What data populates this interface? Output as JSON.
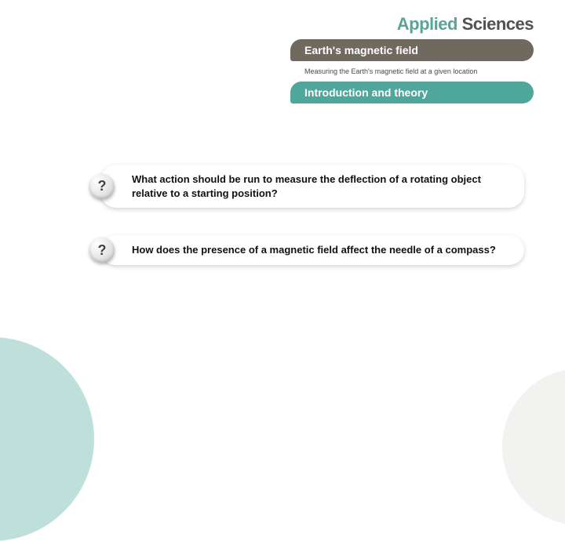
{
  "brand": {
    "word1": "Applied",
    "word2": "Sciences"
  },
  "topic": {
    "title": "Earth's magnetic field",
    "subtitle": "Measuring the Earth's magnetic field at a given location"
  },
  "section": {
    "title": "Introduction and theory"
  },
  "questions": [
    {
      "text": "What action should be run to measure the deflection of a rotating object relative to a starting position?"
    },
    {
      "text": "How does the presence of a magnetic field affect the needle of a compass?"
    }
  ],
  "colors": {
    "brand_accent": "#5aa39a",
    "brand_dark": "#53524e",
    "topic_bg": "#6f695f",
    "section_bg": "#4fa79b",
    "deco": "#bfe0da"
  }
}
